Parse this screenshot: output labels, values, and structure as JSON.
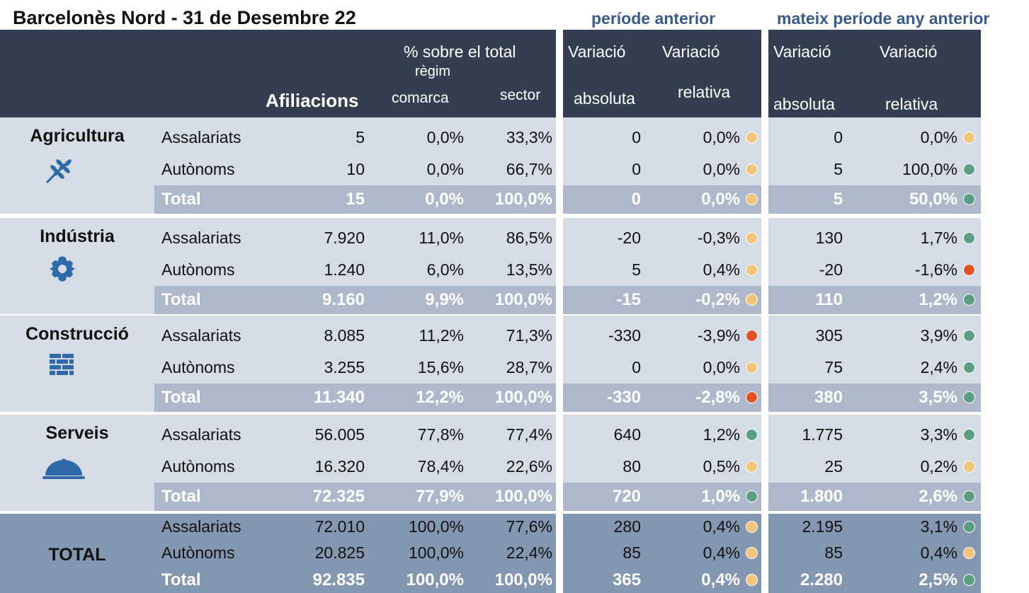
{
  "title": "Barcelonès Nord - 31 de Desembre 22",
  "groups": [
    "període anterior",
    "mateix període any anterior"
  ],
  "header": {
    "pct_total": "% sobre el total",
    "regim": "règim",
    "afiliacions": "Afiliacions",
    "comarca": "comarca",
    "sector": "sector",
    "variations": [
      {
        "top": "Variació",
        "bottom": "absoluta"
      },
      {
        "top": "Variació",
        "bottom": "relativa"
      },
      {
        "top": "Variació",
        "bottom": "absoluta"
      },
      {
        "top": "Variació",
        "bottom": "relativa"
      }
    ]
  },
  "dot_colors": {
    "amber": "#f2c57c",
    "green": "#5b9e83",
    "red": "#e05228"
  },
  "sectors": [
    {
      "name": "Agricultura",
      "rows": [
        {
          "type": "Assalariats",
          "cells": [
            "5",
            "0,0%",
            "33,3%",
            "0",
            "0,0%",
            "0",
            "0,0%"
          ],
          "dots": [
            "amber",
            "amber"
          ]
        },
        {
          "type": "Autònoms",
          "cells": [
            "10",
            "0,0%",
            "66,7%",
            "0",
            "0,0%",
            "5",
            "100,0%"
          ],
          "dots": [
            "amber",
            "green"
          ]
        },
        {
          "type": "Total",
          "cells": [
            "15",
            "0,0%",
            "100,0%",
            "0",
            "0,0%",
            "5",
            "50,0%"
          ],
          "dots": [
            "amber",
            "green"
          ]
        }
      ]
    },
    {
      "name": "Indústria",
      "rows": [
        {
          "type": "Assalariats",
          "cells": [
            "7.920",
            "11,0%",
            "86,5%",
            "-20",
            "-0,3%",
            "130",
            "1,7%"
          ],
          "dots": [
            "amber",
            "green"
          ]
        },
        {
          "type": "Autònoms",
          "cells": [
            "1.240",
            "6,0%",
            "13,5%",
            "5",
            "0,4%",
            "-20",
            "-1,6%"
          ],
          "dots": [
            "amber",
            "red"
          ]
        },
        {
          "type": "Total",
          "cells": [
            "9.160",
            "9,9%",
            "100,0%",
            "-15",
            "-0,2%",
            "110",
            "1,2%"
          ],
          "dots": [
            "amber",
            "green"
          ]
        }
      ]
    },
    {
      "name": "Construcció",
      "rows": [
        {
          "type": "Assalariats",
          "cells": [
            "8.085",
            "11,2%",
            "71,3%",
            "-330",
            "-3,9%",
            "305",
            "3,9%"
          ],
          "dots": [
            "red",
            "green"
          ]
        },
        {
          "type": "Autònoms",
          "cells": [
            "3.255",
            "15,6%",
            "28,7%",
            "0",
            "0,0%",
            "75",
            "2,4%"
          ],
          "dots": [
            "amber",
            "green"
          ]
        },
        {
          "type": "Total",
          "cells": [
            "11.340",
            "12,2%",
            "100,0%",
            "-330",
            "-2,8%",
            "380",
            "3,5%"
          ],
          "dots": [
            "red",
            "green"
          ]
        }
      ]
    },
    {
      "name": "Serveis",
      "rows": [
        {
          "type": "Assalariats",
          "cells": [
            "56.005",
            "77,8%",
            "77,4%",
            "640",
            "1,2%",
            "1.775",
            "3,3%"
          ],
          "dots": [
            "green",
            "green"
          ]
        },
        {
          "type": "Autònoms",
          "cells": [
            "16.320",
            "78,4%",
            "22,6%",
            "80",
            "0,5%",
            "25",
            "0,2%"
          ],
          "dots": [
            "amber",
            "amber"
          ]
        },
        {
          "type": "Total",
          "cells": [
            "72.325",
            "77,9%",
            "100,0%",
            "720",
            "1,0%",
            "1.800",
            "2,6%"
          ],
          "dots": [
            "green",
            "green"
          ]
        }
      ]
    },
    {
      "name": "TOTAL",
      "rows": [
        {
          "type": "Assalariats",
          "cells": [
            "72.010",
            "100,0%",
            "77,6%",
            "280",
            "0,4%",
            "2.195",
            "3,1%"
          ],
          "dots": [
            "amber",
            "green"
          ]
        },
        {
          "type": "Autònoms",
          "cells": [
            "20.825",
            "100,0%",
            "22,4%",
            "85",
            "0,4%",
            "85",
            "0,4%"
          ],
          "dots": [
            "amber",
            "amber"
          ]
        },
        {
          "type": "Total",
          "cells": [
            "92.835",
            "100,0%",
            "100,0%",
            "365",
            "0,4%",
            "2.280",
            "2,5%"
          ],
          "dots": [
            "amber",
            "green"
          ]
        }
      ]
    }
  ]
}
